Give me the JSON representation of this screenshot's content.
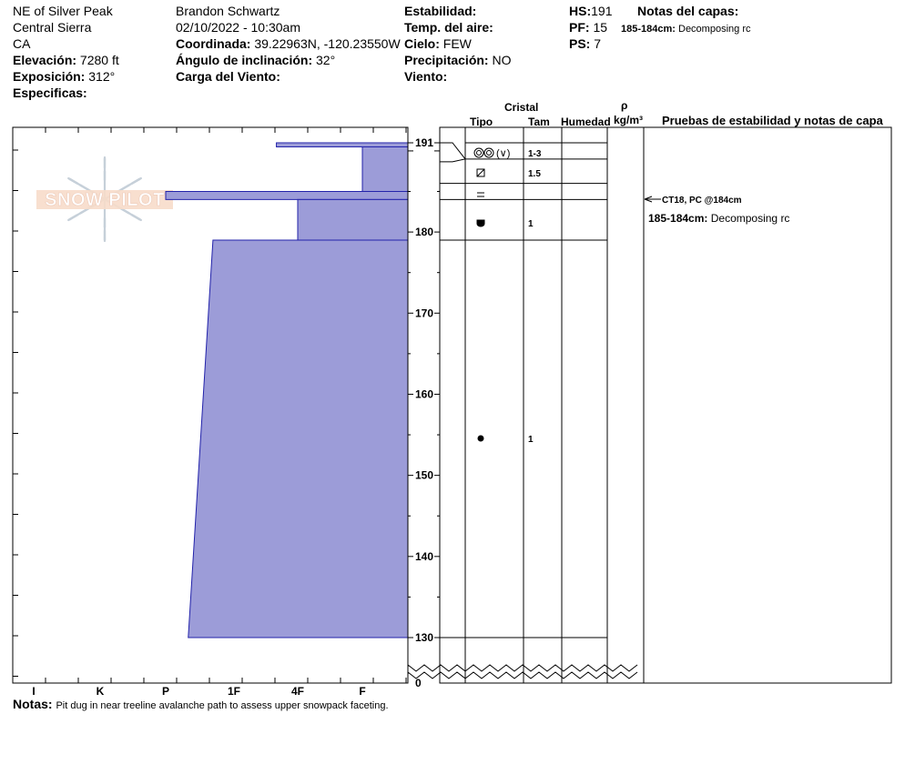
{
  "header": {
    "col1": {
      "location": "NE of Silver Peak",
      "range": "Central Sierra",
      "state": "CA",
      "elevation_label": "Elevación:",
      "elevation_value": "7280 ft",
      "aspect_label": "Exposición:",
      "aspect_value": "312°",
      "specifics_label": "Especificas:"
    },
    "col2": {
      "observer": "Brandon Schwartz",
      "datetime": "02/10/2022 - 10:30am",
      "coord_label": "Coordinada:",
      "coord_value": "39.22963N, -120.23550W",
      "slope_label": "Ángulo de inclinación:",
      "slope_value": "32°",
      "wind_load_label": "Carga del Viento:"
    },
    "col3": {
      "stability_label": "Estabilidad:",
      "air_temp_label": "Temp. del aire:",
      "sky_label": "Cielo:",
      "sky_value": "FEW",
      "precip_label": "Precipitación:",
      "precip_value": "NO",
      "wind_label": "Viento:"
    },
    "col4": {
      "hs_label": "HS:",
      "hs_value": "191",
      "pf_label": "PF:",
      "pf_value": "15",
      "ps_label": "PS:",
      "ps_value": "7"
    },
    "layer_notes": {
      "title": "Notas del capas:",
      "entries": [
        {
          "depth": "185-184cm:",
          "text": "Decomposing rc"
        }
      ]
    }
  },
  "logo_text": "SNOW PILOT",
  "columns": {
    "crystal": "Cristal",
    "type": "Tipo",
    "size": "Tam",
    "moisture": "Humedad",
    "rho": "ρ",
    "density_unit": "kg/m³",
    "tests": "Pruebas de estabilidad y notas de capa"
  },
  "stability_notes": [
    {
      "label": "CT18, PC @184cm",
      "depth": 184
    },
    {
      "label_bold": "185-184cm:",
      "label": "Decomposing rc",
      "depth": 184
    }
  ],
  "layers": [
    {
      "type": "decomposing-broken-rounded",
      "size": "1-3",
      "top": 191,
      "bottom": 189
    },
    {
      "type": "faceted",
      "size": "1.5",
      "top": 189,
      "bottom": 186
    },
    {
      "type": "crust",
      "size": "",
      "top": 186,
      "bottom": 184
    },
    {
      "type": "melt-form",
      "size": "1",
      "top": 184,
      "bottom": 179
    },
    {
      "type": "rounded",
      "size": "1",
      "top": 179,
      "bottom": 130
    }
  ],
  "notes": {
    "label": "Notas:",
    "text": "Pit dug in near treeline avalanche path to assess upper snowpack faceting."
  },
  "chart_data": {
    "type": "area",
    "title": "",
    "xlabel": "",
    "ylabel": "",
    "hardness_ticks": [
      "I",
      "K",
      "P",
      "1F",
      "4F",
      "F"
    ],
    "depth_ticks": [
      191,
      180,
      170,
      160,
      150,
      140,
      130,
      0
    ],
    "ylim": [
      130,
      191
    ],
    "hardness_profile": [
      {
        "top": 191,
        "bottom": 190.5,
        "hardness_left": "4F-",
        "hardness_right": "F",
        "note": "thin top band"
      },
      {
        "top": 190.5,
        "bottom": 185,
        "hardness": "F"
      },
      {
        "top": 185,
        "bottom": 184,
        "hardness": "P"
      },
      {
        "top": 184,
        "bottom": 179,
        "hardness": "4F"
      },
      {
        "top": 179,
        "bottom": 130,
        "hardness_top": "1F-",
        "hardness_bottom": "P+"
      }
    ],
    "stability_tests": [
      {
        "test": "CT18, PC",
        "depth": 184
      }
    ]
  },
  "colors": {
    "profile_fill": "#9c9cd8",
    "profile_stroke": "#2222aa"
  }
}
